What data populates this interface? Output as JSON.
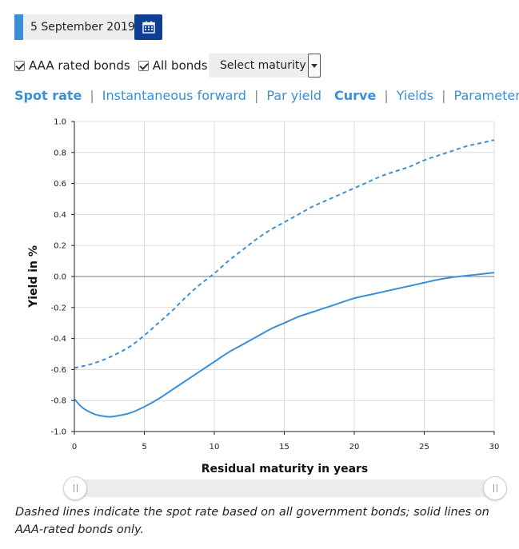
{
  "date": {
    "value": "5 September 2019",
    "icon": "calendar-icon"
  },
  "filters": {
    "aaa_label": "AAA rated bonds",
    "aaa_checked": true,
    "all_label": "All bonds",
    "all_checked": true,
    "maturity_select": "Select maturity"
  },
  "tabs_left": [
    "Spot rate",
    "Instantaneous forward",
    "Par yield"
  ],
  "tabs_left_active": "Spot rate",
  "tabs_right": [
    "Curve",
    "Yields",
    "Parameters"
  ],
  "tabs_right_active": "Curve",
  "colors": {
    "accent": "#3a8fd6",
    "calendar_button": "#0f3f94",
    "line": "#3a8fd6"
  },
  "chart_data": {
    "type": "line",
    "xlabel": "Residual maturity in years",
    "ylabel": "Yield in %",
    "xlim": [
      0,
      30
    ],
    "ylim": [
      -1.0,
      1.0
    ],
    "xticks": [
      0,
      5,
      10,
      15,
      20,
      25,
      30
    ],
    "yticks": [
      -1.0,
      -0.8,
      -0.6,
      -0.4,
      -0.2,
      0.0,
      0.2,
      0.4,
      0.6,
      0.8,
      1.0
    ],
    "grid": true,
    "series": [
      {
        "style": "dashed",
        "x": [
          0,
          1,
          2,
          3,
          4,
          5,
          6,
          7,
          8,
          9,
          10,
          11,
          12,
          13,
          14,
          15,
          16,
          17,
          18,
          19,
          20,
          21,
          22,
          23,
          24,
          25,
          26,
          27,
          28,
          29,
          30
        ],
        "y": [
          -0.59,
          -0.57,
          -0.54,
          -0.5,
          -0.45,
          -0.38,
          -0.3,
          -0.22,
          -0.13,
          -0.05,
          0.02,
          0.1,
          0.17,
          0.24,
          0.3,
          0.35,
          0.4,
          0.45,
          0.49,
          0.53,
          0.57,
          0.61,
          0.65,
          0.68,
          0.71,
          0.75,
          0.78,
          0.81,
          0.84,
          0.86,
          0.88
        ]
      },
      {
        "style": "solid",
        "x": [
          0,
          0.5,
          1,
          1.5,
          2,
          2.5,
          3,
          4,
          5,
          6,
          7,
          8,
          9,
          10,
          11,
          12,
          13,
          14,
          15,
          16,
          17,
          18,
          19,
          20,
          21,
          22,
          23,
          24,
          25,
          26,
          27,
          28,
          29,
          30
        ],
        "y": [
          -0.79,
          -0.84,
          -0.87,
          -0.89,
          -0.9,
          -0.905,
          -0.9,
          -0.88,
          -0.84,
          -0.79,
          -0.73,
          -0.67,
          -0.61,
          -0.55,
          -0.49,
          -0.44,
          -0.39,
          -0.34,
          -0.3,
          -0.26,
          -0.23,
          -0.2,
          -0.17,
          -0.14,
          -0.12,
          -0.1,
          -0.08,
          -0.06,
          -0.04,
          -0.02,
          -0.005,
          0.005,
          0.015,
          0.025
        ]
      }
    ]
  },
  "caption": "Dashed lines indicate the spot rate based on all government bonds; solid lines on AAA-rated bonds only."
}
